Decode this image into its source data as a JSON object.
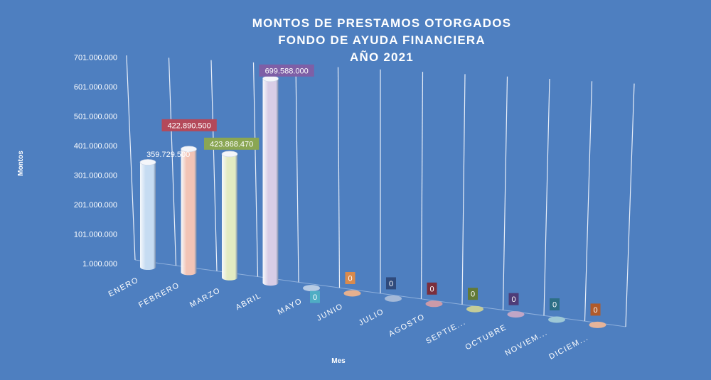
{
  "chart_data": {
    "type": "bar",
    "style": "3d-cylinder",
    "title_lines": [
      "MONTOS  DE  PRESTAMOS  OTORGADOS",
      "FONDO DE AYUDA FINANCIERA",
      "AÑO 2021"
    ],
    "xlabel": "Mes",
    "ylabel": "Montos",
    "ylim": [
      1000000,
      701000000
    ],
    "y_ticks": [
      "1.000.000",
      "101.000.000",
      "201.000.000",
      "301.000.000",
      "401.000.000",
      "501.000.000",
      "601.000.000",
      "701.000.000"
    ],
    "grid": true,
    "legend": "none",
    "categories": [
      "ENERO",
      "FEBRERO",
      "MARZO",
      "ABRIL",
      "MAYO",
      "JUNIO",
      "JULIO",
      "AGOSTO",
      "SEPTIE...",
      "OCTUBRE",
      "NOVIEM...",
      "DICIEM..."
    ],
    "values": [
      359729500,
      422890500,
      423868470,
      699588000,
      0,
      0,
      0,
      0,
      0,
      0,
      0,
      0
    ],
    "data_labels": [
      "359.729.500",
      "422.890.500",
      "423.868.470",
      "699.588.000",
      "0",
      "0",
      "0",
      "0",
      "0",
      "0",
      "0",
      "0"
    ],
    "colors": [
      "#c6dcf2",
      "#f2c4b6",
      "#e3ebc2",
      "#d8cde6",
      "#b7cbe4",
      "#e6b08e",
      "#a4b9d8",
      "#cc9aa8",
      "#c4cc98",
      "#c2a6c6",
      "#9ec8d6",
      "#e6b49a"
    ],
    "label_box_colors": [
      "",
      "#b4495a",
      "#8aa653",
      "#7e5fa6",
      "#4fadc4",
      "#d98a4c",
      "#2f4a7c",
      "#7a2e3c",
      "#627a36",
      "#4e3c78",
      "#2d6f86",
      "#b05a2a"
    ]
  }
}
